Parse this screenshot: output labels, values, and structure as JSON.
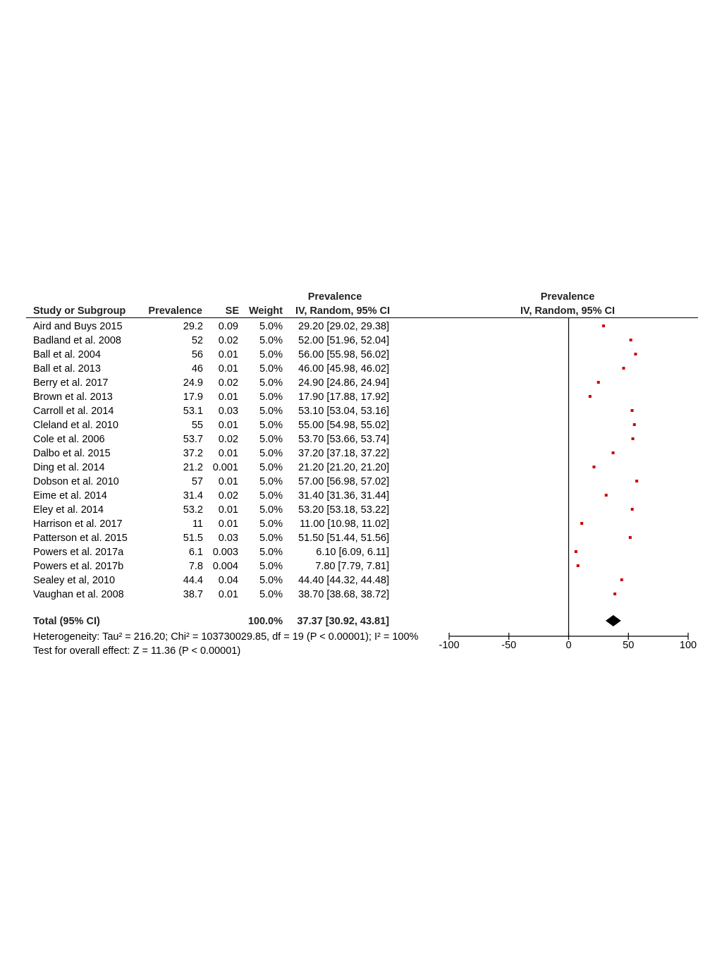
{
  "headers": {
    "group1": "Prevalence",
    "group2": "Prevalence",
    "study": "Study or Subgroup",
    "prevalence": "Prevalence",
    "se": "SE",
    "weight": "Weight",
    "ci": "IV, Random, 95% CI",
    "plot_ci": "IV, Random, 95% CI"
  },
  "rows": [
    {
      "study": "Aird and Buys 2015",
      "prevalence": "29.2",
      "se": "0.09",
      "weight": "5.0%",
      "ci": "29.20 [29.02, 29.38]"
    },
    {
      "study": "Badland et al. 2008",
      "prevalence": "52",
      "se": "0.02",
      "weight": "5.0%",
      "ci": "52.00 [51.96, 52.04]"
    },
    {
      "study": "Ball et al. 2004",
      "prevalence": "56",
      "se": "0.01",
      "weight": "5.0%",
      "ci": "56.00 [55.98, 56.02]"
    },
    {
      "study": "Ball et al. 2013",
      "prevalence": "46",
      "se": "0.01",
      "weight": "5.0%",
      "ci": "46.00 [45.98, 46.02]"
    },
    {
      "study": "Berry et al. 2017",
      "prevalence": "24.9",
      "se": "0.02",
      "weight": "5.0%",
      "ci": "24.90 [24.86, 24.94]"
    },
    {
      "study": "Brown et al. 2013",
      "prevalence": "17.9",
      "se": "0.01",
      "weight": "5.0%",
      "ci": "17.90 [17.88, 17.92]"
    },
    {
      "study": "Carroll et al. 2014",
      "prevalence": "53.1",
      "se": "0.03",
      "weight": "5.0%",
      "ci": "53.10 [53.04, 53.16]"
    },
    {
      "study": "Cleland et al. 2010",
      "prevalence": "55",
      "se": "0.01",
      "weight": "5.0%",
      "ci": "55.00 [54.98, 55.02]"
    },
    {
      "study": "Cole et al. 2006",
      "prevalence": "53.7",
      "se": "0.02",
      "weight": "5.0%",
      "ci": "53.70 [53.66, 53.74]"
    },
    {
      "study": "Dalbo et al. 2015",
      "prevalence": "37.2",
      "se": "0.01",
      "weight": "5.0%",
      "ci": "37.20 [37.18, 37.22]"
    },
    {
      "study": "Ding et al. 2014",
      "prevalence": "21.2",
      "se": "0.001",
      "weight": "5.0%",
      "ci": "21.20 [21.20, 21.20]"
    },
    {
      "study": "Dobson et al. 2010",
      "prevalence": "57",
      "se": "0.01",
      "weight": "5.0%",
      "ci": "57.00 [56.98, 57.02]"
    },
    {
      "study": "Eime et al. 2014",
      "prevalence": "31.4",
      "se": "0.02",
      "weight": "5.0%",
      "ci": "31.40 [31.36, 31.44]"
    },
    {
      "study": "Eley et al. 2014",
      "prevalence": "53.2",
      "se": "0.01",
      "weight": "5.0%",
      "ci": "53.20 [53.18, 53.22]"
    },
    {
      "study": "Harrison et al. 2017",
      "prevalence": "11",
      "se": "0.01",
      "weight": "5.0%",
      "ci": "11.00 [10.98, 11.02]"
    },
    {
      "study": "Patterson et al. 2015",
      "prevalence": "51.5",
      "se": "0.03",
      "weight": "5.0%",
      "ci": "51.50 [51.44, 51.56]"
    },
    {
      "study": "Powers et al. 2017a",
      "prevalence": "6.1",
      "se": "0.003",
      "weight": "5.0%",
      "ci": "6.10 [6.09, 6.11]"
    },
    {
      "study": "Powers et al. 2017b",
      "prevalence": "7.8",
      "se": "0.004",
      "weight": "5.0%",
      "ci": "7.80 [7.79, 7.81]"
    },
    {
      "study": "Sealey et al, 2010",
      "prevalence": "44.4",
      "se": "0.04",
      "weight": "5.0%",
      "ci": "44.40 [44.32, 44.48]"
    },
    {
      "study": "Vaughan et al. 2008",
      "prevalence": "38.7",
      "se": "0.01",
      "weight": "5.0%",
      "ci": "38.70 [38.68, 38.72]"
    }
  ],
  "total": {
    "label": "Total (95% CI)",
    "weight": "100.0%",
    "ci": "37.37 [30.92, 43.81]"
  },
  "heterogeneity": "Heterogeneity: Tau² = 216.20; Chi² = 103730029.85, df = 19 (P < 0.00001); I² = 100%",
  "overall_effect": "Test for overall effect: Z = 11.36 (P < 0.00001)",
  "chart_data": {
    "type": "forest",
    "xlim": [
      -100,
      100
    ],
    "ticks": [
      -100,
      -50,
      0,
      50,
      100
    ],
    "tick_labels": [
      "-100",
      "-50",
      "0",
      "50",
      "100"
    ],
    "null_line": 0,
    "points": [
      29.2,
      52,
      56,
      46,
      24.9,
      17.9,
      53.1,
      55,
      53.7,
      37.2,
      21.2,
      57,
      31.4,
      53.2,
      11,
      51.5,
      6.1,
      7.8,
      44.4,
      38.7
    ],
    "pooled": {
      "estimate": 37.37,
      "lower": 30.92,
      "upper": 43.81
    },
    "colors": {
      "point": "#cc0000",
      "pooled": "#000000",
      "axis": "#000000"
    }
  }
}
